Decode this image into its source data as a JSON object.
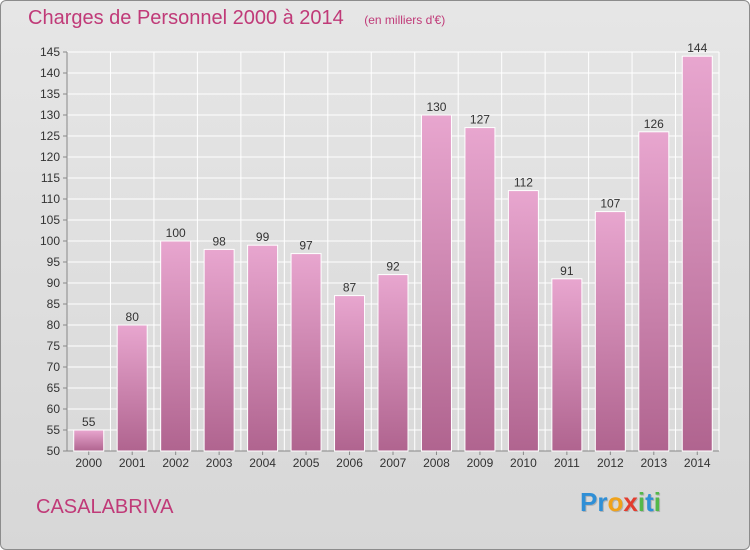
{
  "title": "Charges de Personnel 2000 à 2014",
  "subtitle": "(en milliers d'€)",
  "commune": "CASALABRIVA",
  "brand": {
    "letters": [
      {
        "ch": "P",
        "color": "#2f8fd6"
      },
      {
        "ch": "r",
        "color": "#2f8fd6"
      },
      {
        "ch": "o",
        "color": "#f0a21a"
      },
      {
        "ch": "x",
        "color": "#e23d2f"
      },
      {
        "ch": "i",
        "color": "#54b84a"
      },
      {
        "ch": "t",
        "color": "#2f8fd6"
      },
      {
        "ch": "i",
        "color": "#54b84a"
      }
    ]
  },
  "colors": {
    "title": "#c03a78",
    "bar_top": "#e8a6cf",
    "bar_bottom": "#b0648f",
    "bar_edge": "#ffffff"
  },
  "chart_data": {
    "type": "bar",
    "title": "Charges de Personnel 2000 à 2014",
    "subtitle": "(en milliers d'€)",
    "categories": [
      "2000",
      "2001",
      "2002",
      "2003",
      "2004",
      "2005",
      "2006",
      "2007",
      "2008",
      "2009",
      "2010",
      "2011",
      "2012",
      "2013",
      "2014"
    ],
    "values": [
      55,
      80,
      100,
      98,
      99,
      97,
      87,
      92,
      130,
      127,
      112,
      91,
      107,
      126,
      144
    ],
    "ylim": [
      50,
      145
    ],
    "yticks": [
      50,
      55,
      60,
      65,
      70,
      75,
      80,
      85,
      90,
      95,
      100,
      105,
      110,
      115,
      120,
      125,
      130,
      135,
      140,
      145
    ],
    "grid": true,
    "data_labels": true
  }
}
